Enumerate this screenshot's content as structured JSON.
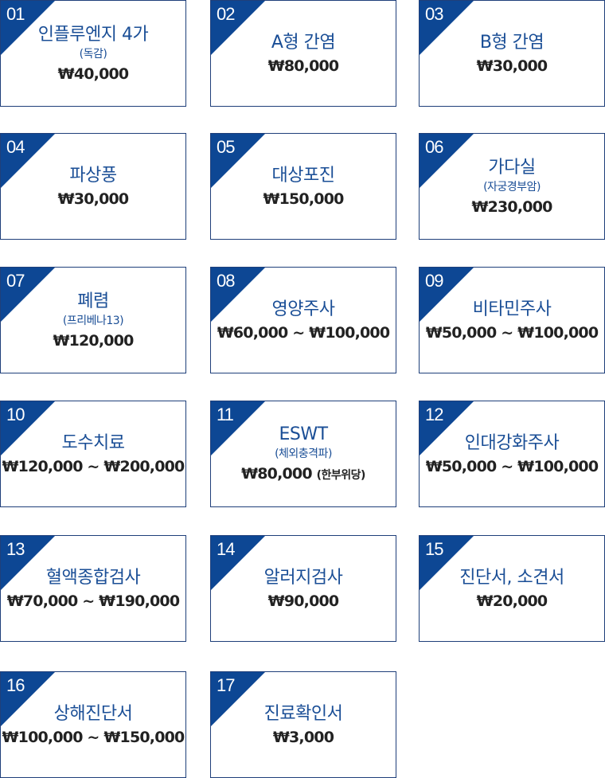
{
  "items": [
    {
      "num": "01",
      "name": "인플루엔지 4가",
      "sub": "(독감)",
      "price": "₩40,000",
      "note": ""
    },
    {
      "num": "02",
      "name": "A형 간염",
      "sub": "",
      "price": "₩80,000",
      "note": ""
    },
    {
      "num": "03",
      "name": "B형 간염",
      "sub": "",
      "price": "₩30,000",
      "note": ""
    },
    {
      "num": "04",
      "name": "파상풍",
      "sub": "",
      "price": "₩30,000",
      "note": ""
    },
    {
      "num": "05",
      "name": "대상포진",
      "sub": "",
      "price": "₩150,000",
      "note": ""
    },
    {
      "num": "06",
      "name": "가다실",
      "sub": "(자궁경부암)",
      "price": "₩230,000",
      "note": ""
    },
    {
      "num": "07",
      "name": "폐렴",
      "sub": "(프리베나13)",
      "price": "₩120,000",
      "note": ""
    },
    {
      "num": "08",
      "name": "영양주사",
      "sub": "",
      "price": "₩60,000 ~ ₩100,000",
      "note": ""
    },
    {
      "num": "09",
      "name": "비타민주사",
      "sub": "",
      "price": "₩50,000 ~ ₩100,000",
      "note": ""
    },
    {
      "num": "10",
      "name": "도수치료",
      "sub": "",
      "price": "₩120,000 ~ ₩200,000",
      "note": ""
    },
    {
      "num": "11",
      "name": "ESWT",
      "sub": "(체외충격파)",
      "price": "₩80,000",
      "note": "(한부위당)"
    },
    {
      "num": "12",
      "name": "인대강화주사",
      "sub": "",
      "price": "₩50,000 ~ ₩100,000",
      "note": ""
    },
    {
      "num": "13",
      "name": "혈액종합검사",
      "sub": "",
      "price": "₩70,000 ~ ₩190,000",
      "note": ""
    },
    {
      "num": "14",
      "name": "알러지검사",
      "sub": "",
      "price": "₩90,000",
      "note": ""
    },
    {
      "num": "15",
      "name": "진단서, 소견서",
      "sub": "",
      "price": "₩20,000",
      "note": ""
    },
    {
      "num": "16",
      "name": "상해진단서",
      "sub": "",
      "price": "₩100,000 ~ ₩150,000",
      "note": ""
    },
    {
      "num": "17",
      "name": "진료확인서",
      "sub": "",
      "price": "₩3,000",
      "note": ""
    }
  ]
}
